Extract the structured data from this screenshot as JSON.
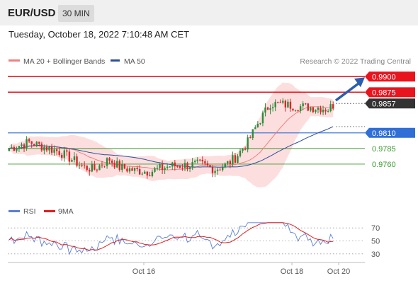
{
  "header": {
    "pair": "EUR/USD",
    "timeframe": "30 MIN",
    "datetime": "Tuesday, October 18, 2022 7:10:48 AM CET"
  },
  "legend": {
    "ma20": "MA 20 + Bollinger Bands",
    "ma50": "MA 50",
    "credit": "Research © 2022 Trading Central"
  },
  "rsi_legend": {
    "rsi": "RSI",
    "ma": "9MA"
  },
  "colors": {
    "red_level": "#e8141e",
    "blue_level": "#2f6fd6",
    "green_level": "#3c9a2e",
    "last_price": "#333333",
    "ma20": "#f08080",
    "ma50": "#2b4f9e",
    "bands": "#fdd8d8",
    "bull": "#2e8b3c",
    "bear": "#d62828",
    "rsi": "#5a7fd6",
    "rsi_ma": "#e02020"
  },
  "chart_data": [
    {
      "type": "candlestick",
      "title": "EUR/USD 30 MIN",
      "ylim": [
        0.97,
        0.9915
      ],
      "x_labels": [
        "Oct 16",
        "Oct 18",
        "Oct 20"
      ],
      "levels": [
        {
          "value": "0.9900",
          "kind": "resistance"
        },
        {
          "value": "0.9875",
          "kind": "resistance"
        },
        {
          "value": "0.9857",
          "kind": "last"
        },
        {
          "value": "0.9810",
          "kind": "pivot"
        },
        {
          "value": "0.9785",
          "kind": "support"
        },
        {
          "value": "0.9760",
          "kind": "support"
        }
      ],
      "series": [
        {
          "name": "MA 20 + Bollinger Bands",
          "kind": "ma20"
        },
        {
          "name": "MA 50",
          "kind": "ma50"
        }
      ]
    },
    {
      "type": "line",
      "title": "RSI",
      "ylim": [
        20,
        80
      ],
      "y_ticks": [
        "70",
        "50",
        "30"
      ],
      "series": [
        {
          "name": "RSI",
          "kind": "rsi"
        },
        {
          "name": "9MA",
          "kind": "rsi_ma"
        }
      ]
    }
  ]
}
